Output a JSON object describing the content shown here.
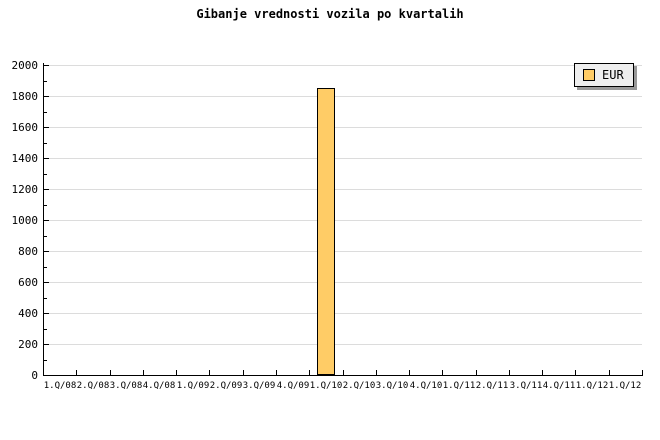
{
  "title": "Gibanje vrednosti vozila po kvartalih",
  "legend": {
    "label": "EUR",
    "swatch_color": "#ffcc66",
    "background": "#eeeeee",
    "shadow_color": "#999999",
    "position": "top-right"
  },
  "colors": {
    "bar_fill": "#ffcc66",
    "bar_border": "#000000",
    "grid": "#dcdcdc",
    "axis": "#000000",
    "text": "#000000",
    "background": "#ffffff"
  },
  "chart_data": {
    "type": "bar",
    "title": "Gibanje vrednosti vozila po kvartalih",
    "categories": [
      "1.Q/08",
      "2.Q/08",
      "3.Q/08",
      "4.Q/08",
      "1.Q/09",
      "2.Q/09",
      "3.Q/09",
      "4.Q/09",
      "1.Q/10",
      "2.Q/10",
      "3.Q/10",
      "4.Q/10",
      "1.Q/11",
      "2.Q/11",
      "3.Q/11",
      "4.Q/11",
      "1.Q/12",
      "1.Q/12"
    ],
    "series": [
      {
        "name": "EUR",
        "values": [
          null,
          null,
          null,
          null,
          null,
          null,
          null,
          null,
          1850,
          null,
          null,
          null,
          null,
          null,
          null,
          null,
          null,
          null
        ]
      }
    ],
    "xlabel": "",
    "ylabel": "",
    "ylim": [
      0,
      2000
    ],
    "yticks": [
      0,
      200,
      400,
      600,
      800,
      1000,
      1200,
      1400,
      1600,
      1800,
      2000
    ],
    "ytick_minor_step": 100,
    "grid": "horizontal-major-only",
    "legend_position": "top-right",
    "bar_color": "#ffcc66",
    "bar_border_color": "#000000"
  }
}
